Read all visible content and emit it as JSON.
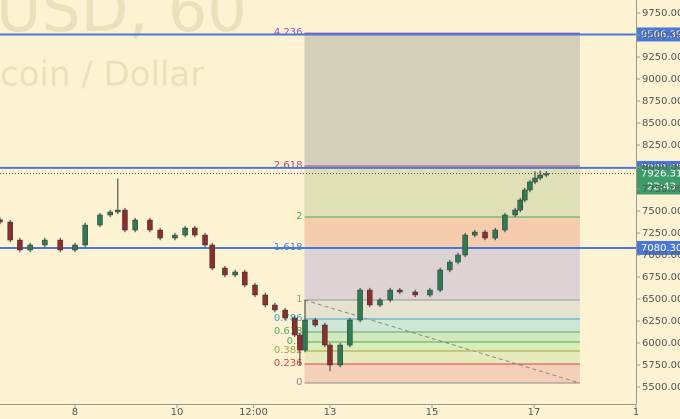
{
  "chart_data": {
    "type": "candlestick",
    "watermark": [
      "USD, 60",
      "coin / Dollar"
    ],
    "xlim": [
      6.53,
      19
    ],
    "ylim": [
      5307,
      9898
    ],
    "xticks": [
      8,
      10,
      {
        "value": 11.5,
        "label": "12:00"
      },
      13,
      15,
      17,
      {
        "value": 19,
        "label": "1"
      }
    ],
    "yticks": [
      {
        "value": 5500,
        "label": "5500.00"
      },
      {
        "value": 5750,
        "label": "5750.00"
      },
      {
        "value": 6000,
        "label": "6000.00"
      },
      {
        "value": 6250,
        "label": "6250.00"
      },
      {
        "value": 6500,
        "label": "6500.00"
      },
      {
        "value": 6750,
        "label": "6750.00"
      },
      {
        "value": 7000,
        "label": "7000.00"
      },
      {
        "value": 7250,
        "label": "7250.00"
      },
      {
        "value": 7500,
        "label": "7500.00"
      },
      {
        "value": 7750,
        "label": "7750.00"
      },
      {
        "value": 8000,
        "label": "8000.00"
      },
      {
        "value": 8250,
        "label": "8250.00"
      },
      {
        "value": 8500,
        "label": "8500.00"
      },
      {
        "value": 8750,
        "label": "8750.00"
      },
      {
        "value": 9000,
        "label": "9000.00"
      },
      {
        "value": 9250,
        "label": "9250.00"
      },
      {
        "value": 9500,
        "label": "9500.00"
      },
      {
        "value": 9750,
        "label": "9750.00"
      }
    ],
    "up_color": "#2f7a52",
    "down_color": "#8a2e2e",
    "x": [
      6.53,
      6.73,
      6.92,
      7.12,
      7.41,
      7.71,
      8.0,
      8.2,
      8.49,
      8.69,
      8.84,
      8.98,
      9.18,
      9.47,
      9.67,
      9.96,
      10.16,
      10.35,
      10.55,
      10.69,
      10.94,
      11.14,
      11.33,
      11.53,
      11.73,
      11.92,
      12.12,
      12.31,
      12.41,
      12.51,
      12.71,
      12.9,
      13.0,
      13.2,
      13.39,
      13.59,
      13.78,
      13.98,
      14.18,
      14.37,
      14.67,
      14.96,
      15.16,
      15.35,
      15.51,
      15.65,
      15.84,
      16.04,
      16.24,
      16.43,
      16.63,
      16.73,
      16.82,
      16.92,
      17.02,
      17.12,
      17.24
    ],
    "open": [
      7400,
      7375,
      7170,
      7057,
      7114,
      7170,
      7057,
      7114,
      7341,
      7455,
      7489,
      7511,
      7284,
      7398,
      7284,
      7193,
      7227,
      7307,
      7227,
      7114,
      6852,
      6773,
      6807,
      6659,
      6546,
      6432,
      6375,
      6284,
      6091,
      5920,
      6261,
      6205,
      5977,
      5750,
      5977,
      6261,
      6602,
      6432,
      6489,
      6602,
      6580,
      6546,
      6602,
      6830,
      6920,
      7000,
      7227,
      7261,
      7193,
      7284,
      7455,
      7511,
      7625,
      7739,
      7830,
      7875,
      7909
    ],
    "high": [
      7425,
      7400,
      7195,
      7139,
      7195,
      7195,
      7139,
      7366,
      7480,
      7514,
      7870,
      7536,
      7423,
      7423,
      7309,
      7252,
      7332,
      7332,
      7252,
      7139,
      6877,
      6832,
      6832,
      6684,
      6571,
      6457,
      6400,
      6309,
      6116,
      6489,
      6286,
      6230,
      6002,
      6002,
      6286,
      6627,
      6627,
      6514,
      6627,
      6627,
      6605,
      6627,
      6855,
      6945,
      7025,
      7252,
      7286,
      7286,
      7309,
      7480,
      7536,
      7650,
      7764,
      7855,
      7950,
      7960,
      7955
    ],
    "low": [
      7350,
      7145,
      7032,
      7032,
      7089,
      7032,
      7032,
      7089,
      7316,
      7430,
      7464,
      7259,
      7259,
      7259,
      7168,
      7168,
      7202,
      7202,
      7089,
      6827,
      6748,
      6748,
      6634,
      6521,
      6407,
      6350,
      6259,
      6066,
      5750,
      5895,
      6180,
      5952,
      5680,
      5725,
      5952,
      6236,
      6407,
      6407,
      6464,
      6555,
      6521,
      6521,
      6577,
      6805,
      6895,
      6975,
      7202,
      7168,
      7168,
      7259,
      7430,
      7486,
      7600,
      7714,
      7805,
      7850,
      7884
    ],
    "close": [
      7375,
      7170,
      7057,
      7114,
      7170,
      7057,
      7114,
      7341,
      7455,
      7489,
      7511,
      7284,
      7398,
      7284,
      7193,
      7227,
      7307,
      7227,
      7114,
      6852,
      6773,
      6807,
      6659,
      6546,
      6432,
      6375,
      6284,
      6091,
      5920,
      6261,
      6205,
      5977,
      5750,
      5977,
      6261,
      6602,
      6432,
      6489,
      6602,
      6580,
      6546,
      6602,
      6830,
      6920,
      7000,
      7227,
      7261,
      7193,
      7284,
      7455,
      7511,
      7625,
      7739,
      7830,
      7875,
      7909,
      7926
    ],
    "price_lines": {
      "values": [
        9506.39,
        7989.65,
        7080.3
      ],
      "value_labels": [
        "9506.39",
        "7989.65",
        "7080.30"
      ],
      "color": "#4a78d6"
    },
    "last_price": {
      "value": 7926.31,
      "value_label": "7926.31",
      "countdown": "22:43",
      "color": "#3c9c6a"
    },
    "fib": {
      "x_start": 12.5,
      "x_end": 17.9,
      "levels": [
        0,
        0.236,
        0.382,
        0.5,
        0.618,
        0.786,
        1,
        1.618,
        2,
        2.618,
        4.236
      ],
      "values": [
        5545,
        5761,
        5909,
        6011,
        6125,
        6273,
        6489,
        7080,
        7432,
        8011,
        9522
      ],
      "line_colors": [
        "#8a8a8a",
        "#e04040",
        "#a8a040",
        "#4caf50",
        "#5aa86a",
        "#3aa5c9",
        "#999999",
        "#4a78d6",
        "#4caf50",
        "#c0407a",
        "#9c4fb8"
      ],
      "zone_colors": [
        "#f2c9b4",
        "#e3e7b8",
        "#d2ebb5",
        "#c9e6b9",
        "#c4e3d6",
        "#e0dfd0",
        "#d7cdd5",
        "#f3c6a8",
        "#d9dcb4",
        "#cbc8b4"
      ]
    }
  }
}
